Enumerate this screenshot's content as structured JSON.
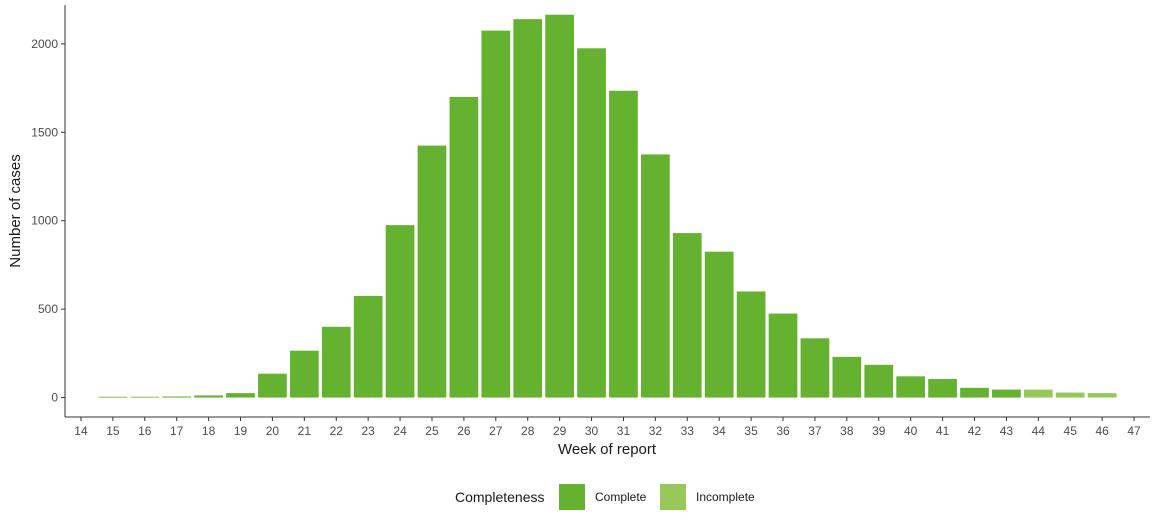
{
  "chart_data": {
    "type": "bar",
    "xlabel": "Week of report",
    "ylabel": "Number of cases",
    "xlim": [
      13.5,
      47.5
    ],
    "ylim": [
      -110,
      2220
    ],
    "yticks": [
      0,
      500,
      1000,
      1500,
      2000
    ],
    "xticks": [
      14,
      15,
      16,
      17,
      18,
      19,
      20,
      21,
      22,
      23,
      24,
      25,
      26,
      27,
      28,
      29,
      30,
      31,
      32,
      33,
      34,
      35,
      36,
      37,
      38,
      39,
      40,
      41,
      42,
      43,
      44,
      45,
      46,
      47
    ],
    "grid": false,
    "legend": {
      "title": "Completeness",
      "position": "bottom",
      "entries": [
        {
          "label": "Complete",
          "color": "#64b22f"
        },
        {
          "label": "Incomplete",
          "color": "#96c85a"
        }
      ]
    },
    "bars": [
      {
        "week": 15,
        "value": 2,
        "status": "Complete"
      },
      {
        "week": 16,
        "value": 3,
        "status": "Complete"
      },
      {
        "week": 17,
        "value": 6,
        "status": "Complete"
      },
      {
        "week": 18,
        "value": 12,
        "status": "Complete"
      },
      {
        "week": 19,
        "value": 25,
        "status": "Complete"
      },
      {
        "week": 20,
        "value": 135,
        "status": "Complete"
      },
      {
        "week": 21,
        "value": 265,
        "status": "Complete"
      },
      {
        "week": 22,
        "value": 400,
        "status": "Complete"
      },
      {
        "week": 23,
        "value": 575,
        "status": "Complete"
      },
      {
        "week": 24,
        "value": 975,
        "status": "Complete"
      },
      {
        "week": 25,
        "value": 1425,
        "status": "Complete"
      },
      {
        "week": 26,
        "value": 1700,
        "status": "Complete"
      },
      {
        "week": 27,
        "value": 2075,
        "status": "Complete"
      },
      {
        "week": 28,
        "value": 2140,
        "status": "Complete"
      },
      {
        "week": 29,
        "value": 2165,
        "status": "Complete"
      },
      {
        "week": 30,
        "value": 1975,
        "status": "Complete"
      },
      {
        "week": 31,
        "value": 1735,
        "status": "Complete"
      },
      {
        "week": 32,
        "value": 1375,
        "status": "Complete"
      },
      {
        "week": 33,
        "value": 930,
        "status": "Complete"
      },
      {
        "week": 34,
        "value": 825,
        "status": "Complete"
      },
      {
        "week": 35,
        "value": 600,
        "status": "Complete"
      },
      {
        "week": 36,
        "value": 475,
        "status": "Complete"
      },
      {
        "week": 37,
        "value": 335,
        "status": "Complete"
      },
      {
        "week": 38,
        "value": 230,
        "status": "Complete"
      },
      {
        "week": 39,
        "value": 185,
        "status": "Complete"
      },
      {
        "week": 40,
        "value": 120,
        "status": "Complete"
      },
      {
        "week": 41,
        "value": 105,
        "status": "Complete"
      },
      {
        "week": 42,
        "value": 55,
        "status": "Complete"
      },
      {
        "week": 43,
        "value": 45,
        "status": "Complete"
      },
      {
        "week": 44,
        "value": 45,
        "status": "Incomplete"
      },
      {
        "week": 45,
        "value": 28,
        "status": "Incomplete"
      },
      {
        "week": 46,
        "value": 25,
        "status": "Incomplete"
      }
    ]
  }
}
